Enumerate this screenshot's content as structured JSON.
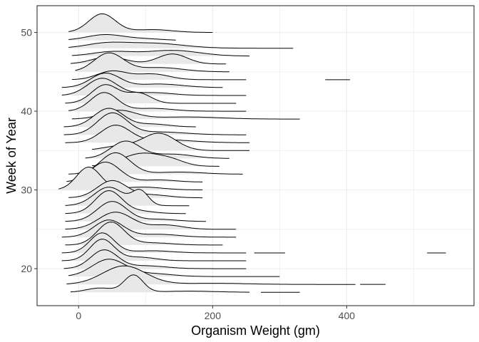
{
  "chart_data": {
    "type": "ridgeline",
    "title": "",
    "xlabel": "Organism Weight (gm)",
    "ylabel": "Week of Year",
    "xlim": [
      -62,
      590
    ],
    "ylim": [
      15.3,
      53.4
    ],
    "x_ticks": [
      0,
      200,
      400
    ],
    "y_ticks": [
      20,
      30,
      40,
      50
    ],
    "grid": true,
    "legend": "none",
    "ridge_fill_color": "#e8e8e8",
    "ridge_line_color": "#000000",
    "grid_color": "#ebebeb",
    "ridges": [
      {
        "week": 17,
        "x_start": -12,
        "x_end": 255,
        "peaks": [
          {
            "x": 82,
            "h": 1.2,
            "w": 14
          },
          {
            "x": 32,
            "h": 0.3,
            "w": 20
          },
          {
            "x": 165,
            "h": 0.08,
            "w": 40
          }
        ],
        "extra_segments": [
          [
            272,
            330
          ]
        ]
      },
      {
        "week": 18,
        "x_start": -18,
        "x_end": 413,
        "peaks": [
          {
            "x": 68,
            "h": 1.3,
            "w": 32
          },
          {
            "x": 200,
            "h": 0.08,
            "w": 50
          }
        ],
        "extra_segments": [
          [
            420,
            458
          ]
        ]
      },
      {
        "week": 19,
        "x_start": -15,
        "x_end": 300,
        "peaks": [
          {
            "x": 45,
            "h": 1.2,
            "w": 25
          },
          {
            "x": 110,
            "h": 0.2,
            "w": 30
          }
        ]
      },
      {
        "week": 20,
        "x_start": -22,
        "x_end": 250,
        "peaks": [
          {
            "x": 38,
            "h": 1.3,
            "w": 20
          },
          {
            "x": 100,
            "h": 0.2,
            "w": 30
          }
        ]
      },
      {
        "week": 21,
        "x_start": -25,
        "x_end": 250,
        "peaks": [
          {
            "x": 35,
            "h": 1.5,
            "w": 18
          },
          {
            "x": 90,
            "h": 0.25,
            "w": 25
          }
        ]
      },
      {
        "week": 22,
        "x_start": -25,
        "x_end": 250,
        "peaks": [
          {
            "x": 35,
            "h": 1.4,
            "w": 18
          },
          {
            "x": 110,
            "h": 0.15,
            "w": 30
          }
        ],
        "extra_segments": [
          [
            262,
            308
          ],
          [
            520,
            548
          ]
        ]
      },
      {
        "week": 23,
        "x_start": -20,
        "x_end": 215,
        "peaks": [
          {
            "x": 48,
            "h": 1.6,
            "w": 20
          },
          {
            "x": 110,
            "h": 0.15,
            "w": 30
          }
        ]
      },
      {
        "week": 24,
        "x_start": -25,
        "x_end": 235,
        "peaks": [
          {
            "x": 45,
            "h": 1.2,
            "w": 22
          },
          {
            "x": 120,
            "h": 0.2,
            "w": 30
          }
        ]
      },
      {
        "week": 25,
        "x_start": -20,
        "x_end": 235,
        "peaks": [
          {
            "x": 55,
            "h": 1.2,
            "w": 25
          },
          {
            "x": 130,
            "h": 0.3,
            "w": 25
          }
        ]
      },
      {
        "week": 26,
        "x_start": -20,
        "x_end": 190,
        "peaks": [
          {
            "x": 50,
            "h": 1.4,
            "w": 22
          },
          {
            "x": 120,
            "h": 0.15,
            "w": 25
          }
        ]
      },
      {
        "week": 27,
        "x_start": -20,
        "x_end": 160,
        "peaks": [
          {
            "x": 45,
            "h": 1.6,
            "w": 20
          },
          {
            "x": 95,
            "h": 0.15,
            "w": 20
          }
        ]
      },
      {
        "week": 28,
        "x_start": -20,
        "x_end": 165,
        "peaks": [
          {
            "x": 45,
            "h": 1.3,
            "w": 22
          },
          {
            "x": 92,
            "h": 1.0,
            "w": 12
          }
        ]
      },
      {
        "week": 29,
        "x_start": -15,
        "x_end": 185,
        "peaks": [
          {
            "x": 50,
            "h": 1.2,
            "w": 22
          },
          {
            "x": 110,
            "h": 0.2,
            "w": 25
          }
        ]
      },
      {
        "week": 30,
        "x_start": -30,
        "x_end": 185,
        "peaks": [
          {
            "x": 15,
            "h": 1.6,
            "w": 18
          },
          {
            "x": 95,
            "h": 0.2,
            "w": 30
          }
        ]
      },
      {
        "week": 31,
        "x_start": -18,
        "x_end": 185,
        "peaks": [
          {
            "x": 40,
            "h": 1.4,
            "w": 22
          },
          {
            "x": 120,
            "h": 0.15,
            "w": 25
          }
        ]
      },
      {
        "week": 32,
        "x_start": -15,
        "x_end": 245,
        "peaks": [
          {
            "x": 55,
            "h": 1.5,
            "w": 22
          },
          {
            "x": 150,
            "h": 0.15,
            "w": 35
          }
        ]
      },
      {
        "week": 33,
        "x_start": 20,
        "x_end": 210,
        "peaks": [
          {
            "x": 95,
            "h": 0.9,
            "w": 30
          },
          {
            "x": 140,
            "h": 0.3,
            "w": 20
          }
        ]
      },
      {
        "week": 34,
        "x_start": 10,
        "x_end": 225,
        "peaks": [
          {
            "x": 70,
            "h": 1.2,
            "w": 22
          },
          {
            "x": 140,
            "h": 0.3,
            "w": 30
          }
        ]
      },
      {
        "week": 35,
        "x_start": 20,
        "x_end": 255,
        "peaks": [
          {
            "x": 120,
            "h": 1.2,
            "w": 25
          },
          {
            "x": 60,
            "h": 0.3,
            "w": 25
          }
        ]
      },
      {
        "week": 36,
        "x_start": -20,
        "x_end": 255,
        "peaks": [
          {
            "x": 55,
            "h": 1.2,
            "w": 22
          },
          {
            "x": 130,
            "h": 0.2,
            "w": 40
          }
        ]
      },
      {
        "week": 37,
        "x_start": -22,
        "x_end": 250,
        "peaks": [
          {
            "x": 50,
            "h": 1.5,
            "w": 22
          },
          {
            "x": 120,
            "h": 0.2,
            "w": 40
          }
        ]
      },
      {
        "week": 38,
        "x_start": -22,
        "x_end": 175,
        "peaks": [
          {
            "x": 45,
            "h": 1.3,
            "w": 22
          },
          {
            "x": 110,
            "h": 0.2,
            "w": 25
          }
        ]
      },
      {
        "week": 39,
        "x_start": -10,
        "x_end": 330,
        "peaks": [
          {
            "x": 60,
            "h": 0.6,
            "w": 25
          },
          {
            "x": 160,
            "h": 0.15,
            "w": 50
          }
        ]
      },
      {
        "week": 40,
        "x_start": -15,
        "x_end": 250,
        "peaks": [
          {
            "x": 38,
            "h": 1.3,
            "w": 20
          },
          {
            "x": 110,
            "h": 0.2,
            "w": 30
          }
        ]
      },
      {
        "week": 41,
        "x_start": -20,
        "x_end": 235,
        "peaks": [
          {
            "x": 40,
            "h": 1.3,
            "w": 20
          },
          {
            "x": 90,
            "h": 0.7,
            "w": 18
          }
        ]
      },
      {
        "week": 42,
        "x_start": -25,
        "x_end": 250,
        "peaks": [
          {
            "x": 35,
            "h": 1.2,
            "w": 22
          },
          {
            "x": 110,
            "h": 0.2,
            "w": 30
          }
        ]
      },
      {
        "week": 43,
        "x_start": -25,
        "x_end": 215,
        "peaks": [
          {
            "x": 40,
            "h": 1.0,
            "w": 22
          },
          {
            "x": 120,
            "h": 0.25,
            "w": 35
          }
        ]
      },
      {
        "week": 44,
        "x_start": -10,
        "x_end": 250,
        "peaks": [
          {
            "x": 50,
            "h": 0.6,
            "w": 22
          },
          {
            "x": 110,
            "h": 0.4,
            "w": 25
          }
        ],
        "extra_segments": [
          [
            368,
            405
          ]
        ]
      },
      {
        "week": 45,
        "x_start": -5,
        "x_end": 225,
        "peaks": [
          {
            "x": 45,
            "h": 1.3,
            "w": 22
          },
          {
            "x": 120,
            "h": 0.3,
            "w": 35
          }
        ]
      },
      {
        "week": 46,
        "x_start": -12,
        "x_end": 220,
        "peaks": [
          {
            "x": 45,
            "h": 0.5,
            "w": 25
          },
          {
            "x": 140,
            "h": 0.7,
            "w": 22
          }
        ]
      },
      {
        "week": 47,
        "x_start": -10,
        "x_end": 255,
        "peaks": [
          {
            "x": 50,
            "h": 0.3,
            "w": 30
          },
          {
            "x": 140,
            "h": 0.4,
            "w": 40
          }
        ]
      },
      {
        "week": 48,
        "x_start": -15,
        "x_end": 320,
        "peaks": [
          {
            "x": 40,
            "h": 0.3,
            "w": 30
          },
          {
            "x": 110,
            "h": 0.35,
            "w": 45
          }
        ]
      },
      {
        "week": 49,
        "x_start": -15,
        "x_end": 145,
        "peaks": [
          {
            "x": 40,
            "h": 0.4,
            "w": 28
          },
          {
            "x": 100,
            "h": 0.1,
            "w": 25
          }
        ]
      },
      {
        "week": 50,
        "x_start": -15,
        "x_end": 200,
        "peaks": [
          {
            "x": 35,
            "h": 1.3,
            "w": 20
          },
          {
            "x": 110,
            "h": 0.2,
            "w": 30
          }
        ]
      }
    ]
  }
}
